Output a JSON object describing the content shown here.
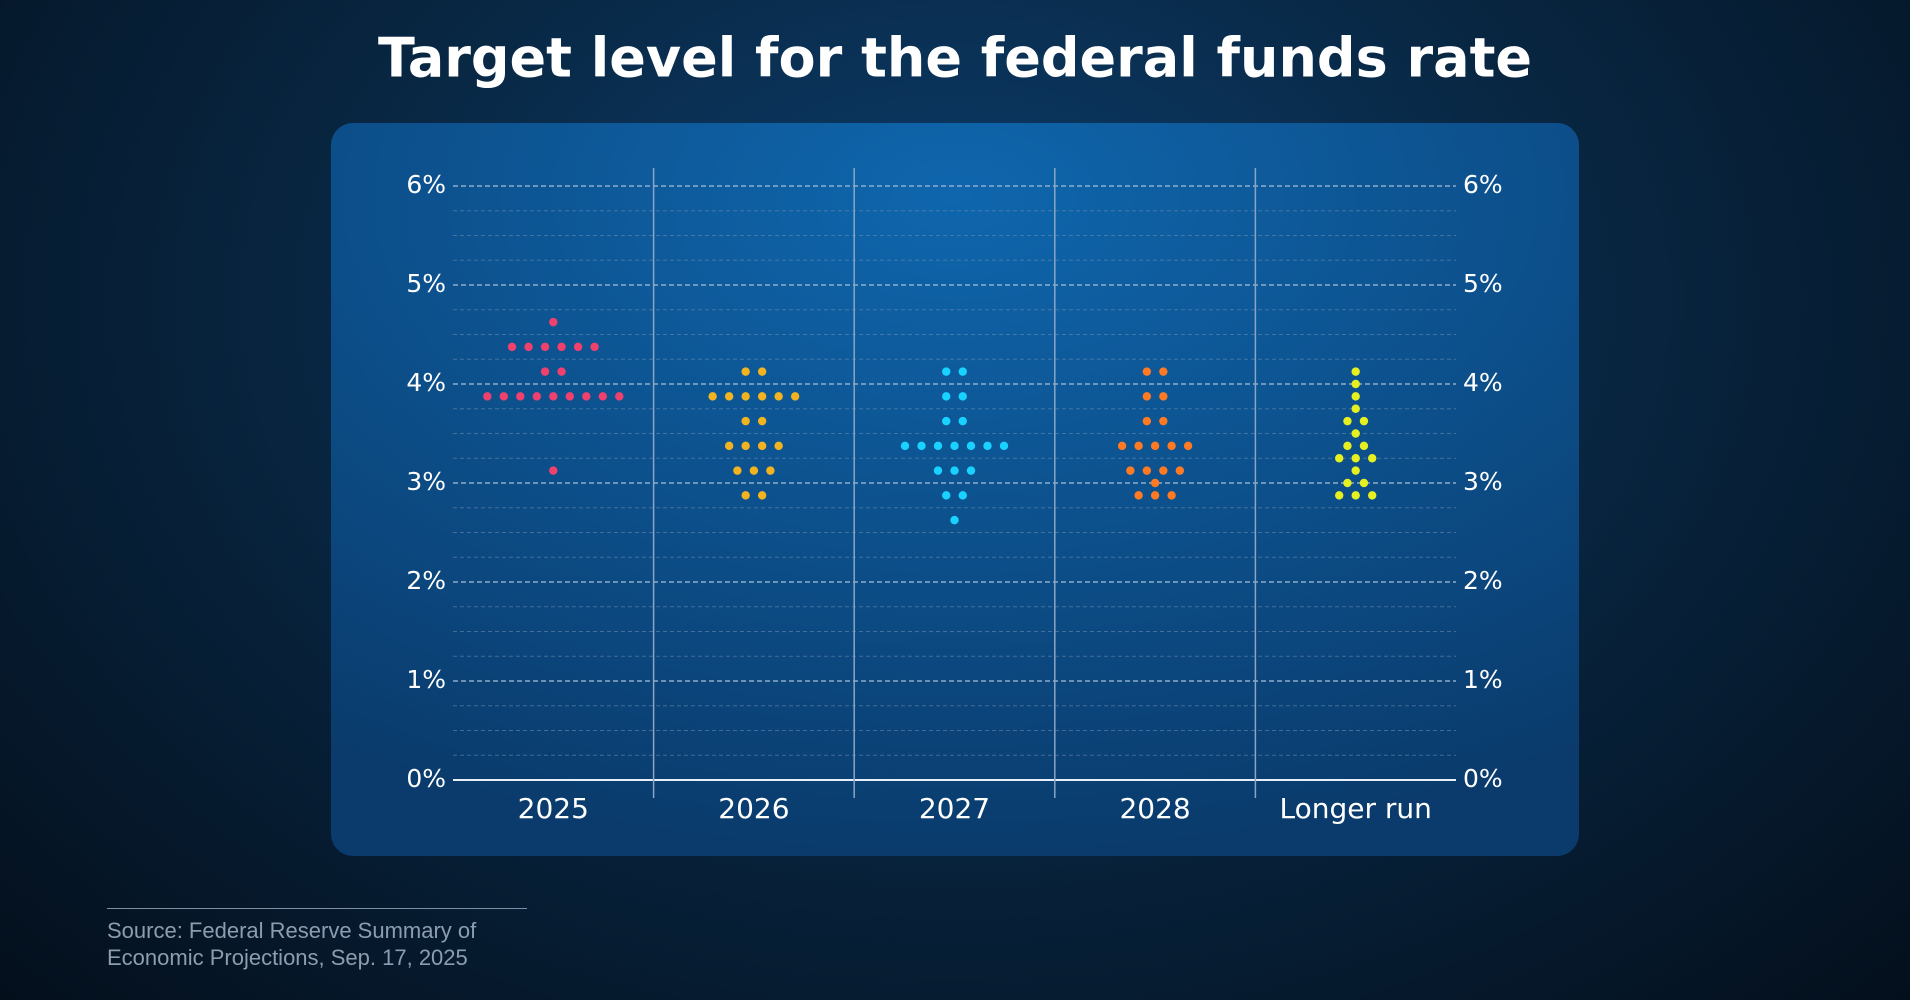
{
  "chart_data": {
    "type": "dot",
    "title": "Target level for the federal funds rate",
    "source": "Source: Federal Reserve Summary of Economic Projections, Sep. 17, 2025",
    "columns": [
      {
        "name": "2025",
        "color": "#f0406e",
        "values": [
          4.625,
          4.375,
          4.375,
          4.375,
          4.375,
          4.375,
          4.375,
          4.125,
          4.125,
          3.875,
          3.875,
          3.875,
          3.875,
          3.875,
          3.875,
          3.875,
          3.875,
          3.875,
          3.125
        ]
      },
      {
        "name": "2026",
        "color": "#f2b320",
        "values": [
          4.125,
          4.125,
          3.875,
          3.875,
          3.875,
          3.875,
          3.875,
          3.875,
          3.625,
          3.625,
          3.375,
          3.375,
          3.375,
          3.375,
          3.125,
          3.125,
          3.125,
          2.875,
          2.875
        ]
      },
      {
        "name": "2027",
        "color": "#19d2ff",
        "values": [
          4.125,
          4.125,
          3.875,
          3.875,
          3.625,
          3.625,
          3.375,
          3.375,
          3.375,
          3.375,
          3.375,
          3.375,
          3.375,
          3.125,
          3.125,
          3.125,
          2.875,
          2.875,
          2.625
        ]
      },
      {
        "name": "2028",
        "color": "#ff7a22",
        "values": [
          4.125,
          4.125,
          3.875,
          3.875,
          3.625,
          3.625,
          3.375,
          3.375,
          3.375,
          3.375,
          3.375,
          3.125,
          3.125,
          3.125,
          3.125,
          3.0,
          2.875,
          2.875,
          2.875
        ]
      },
      {
        "name": "Longer run",
        "color": "#e6f020",
        "values": [
          4.125,
          4.0,
          3.875,
          3.75,
          3.625,
          3.625,
          3.5,
          3.375,
          3.375,
          3.25,
          3.25,
          3.25,
          3.125,
          3.0,
          3.0,
          2.875,
          2.875,
          2.875
        ]
      }
    ],
    "ylim": [
      0,
      6
    ],
    "yticks": [
      {
        "value": 0,
        "label": "0%"
      },
      {
        "value": 1,
        "label": "1%"
      },
      {
        "value": 2,
        "label": "2%"
      },
      {
        "value": 3,
        "label": "3%"
      },
      {
        "value": 4,
        "label": "4%"
      },
      {
        "value": 5,
        "label": "5%"
      },
      {
        "value": 6,
        "label": "6%"
      }
    ],
    "minor_yticks": [
      0.25,
      0.5,
      0.75,
      1.25,
      1.5,
      1.75,
      2.25,
      2.5,
      2.75,
      3.25,
      3.5,
      3.75,
      4.25,
      4.5,
      4.75,
      5.25,
      5.5,
      5.75
    ],
    "grid": true
  }
}
